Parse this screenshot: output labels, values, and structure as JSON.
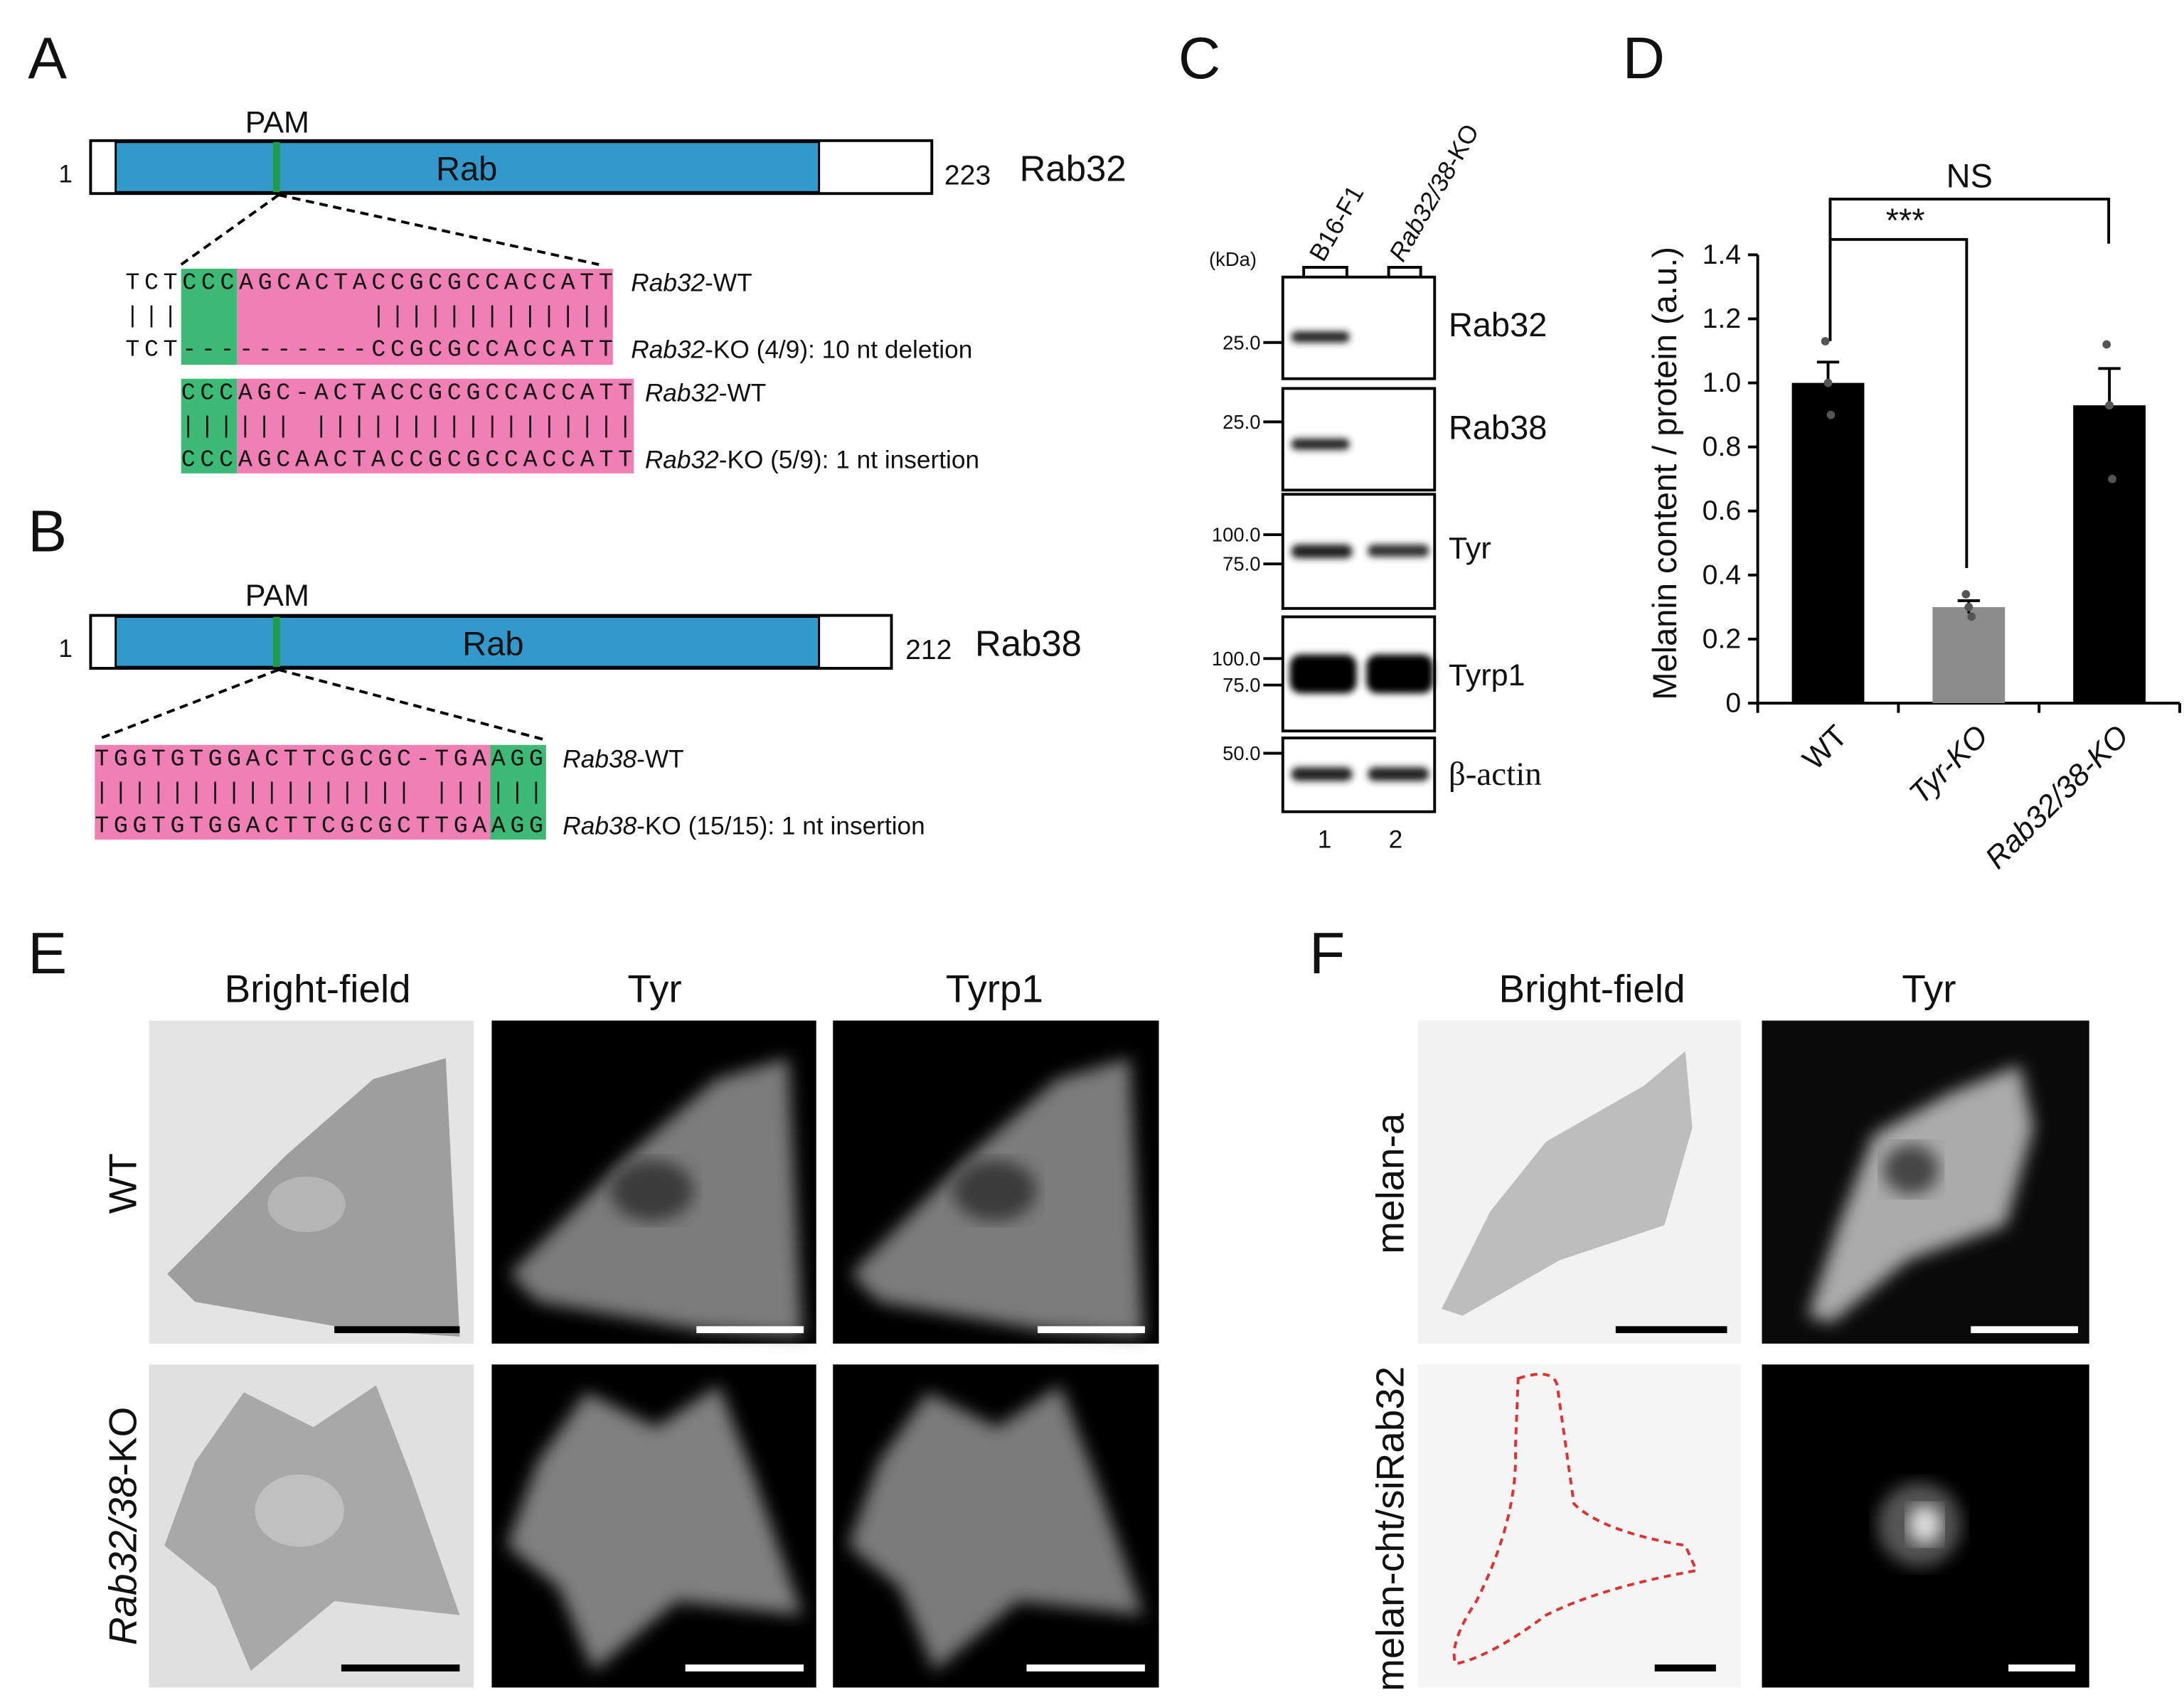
{
  "panel_a": {
    "label": "A",
    "pam": "PAM",
    "start": "1",
    "end": "223",
    "protein": "Rab32",
    "domain": "Rab",
    "alignment_1": {
      "wt_seq": "TCTCCCAGCACTACCGCGCCACCATT",
      "match": "|||          |||||||||||||",
      "ko_seq": "TCT----------CCGCGCCACCATT",
      "wt_gene": "Rab32",
      "wt_suffix": "-WT",
      "ko_gene": "Rab32",
      "ko_suffix": "-KO (4/9): 10 nt deletion"
    },
    "alignment_2": {
      "wt_seq": "CCCAGC-ACTACCGCGCCACCATT",
      "match": "|||||| |||||||||||||||||",
      "ko_seq": "CCCAGCAACTACCGCGCCACCATT",
      "wt_gene": "Rab32",
      "wt_suffix": "-WT",
      "ko_gene": "Rab32",
      "ko_suffix": "-KO (5/9): 1 nt insertion"
    }
  },
  "panel_b": {
    "label": "B",
    "pam": "PAM",
    "start": "1",
    "end": "212",
    "protein": "Rab38",
    "domain": "Rab",
    "alignment": {
      "wt_seq": "TGGTGTGGACTTCGCGC-TGAAGG",
      "match": "||||||||||||||||| ||||||",
      "ko_seq": "TGGTGTGGACTTCGCGCTTGAAGG",
      "wt_gene": "Rab38",
      "wt_suffix": "-WT",
      "ko_gene": "Rab38",
      "ko_suffix": "-KO (15/15): 1 nt insertion"
    }
  },
  "panel_c": {
    "label": "C",
    "unit": "(kDa)",
    "lane_1": "B16-F1",
    "lane_2_gene": "Rab32/38",
    "lane_2_suffix": "-KO",
    "blots": [
      "Rab32",
      "Rab38",
      "Tyr",
      "Tyrp1",
      "β-actin"
    ],
    "markers": [
      "25.0",
      "25.0",
      "100.0",
      "75.0",
      "100.0",
      "75.0",
      "50.0"
    ],
    "lane_numbers": [
      "1",
      "2"
    ]
  },
  "chart_data": {
    "type": "bar",
    "panel_label": "D",
    "ylabel": "Melanin content / protein (a.u.)",
    "categories": [
      "WT",
      "Tyr-KO",
      "Rab32/38-KO"
    ],
    "values": [
      1.0,
      0.3,
      0.93
    ],
    "errors": [
      0.065,
      0.02,
      0.115
    ],
    "points": [
      [
        1.13,
        1.0,
        0.9
      ],
      [
        0.34,
        0.3,
        0.27
      ],
      [
        1.12,
        0.93,
        0.7
      ]
    ],
    "colors": [
      "#000000",
      "#8c8c8c",
      "#000000"
    ],
    "ylim": [
      0,
      1.4
    ],
    "yticks": [
      0,
      0.2,
      0.4,
      0.6,
      0.8,
      {
        "value": 1,
        "label": "1.0"
      },
      1.2,
      1.4
    ],
    "annotations": [
      "***",
      "NS"
    ]
  },
  "panel_e": {
    "label": "E",
    "columns": [
      "Bright-field",
      "Tyr",
      "Tyrp1"
    ],
    "row_1": "WT",
    "row_2_gene": "Rab32/38",
    "row_2_suffix": "-KO"
  },
  "panel_f": {
    "label": "F",
    "columns": [
      "Bright-field",
      "Tyr"
    ],
    "row_1": "melan-a",
    "row_2": "melan-cht/siRab32"
  }
}
